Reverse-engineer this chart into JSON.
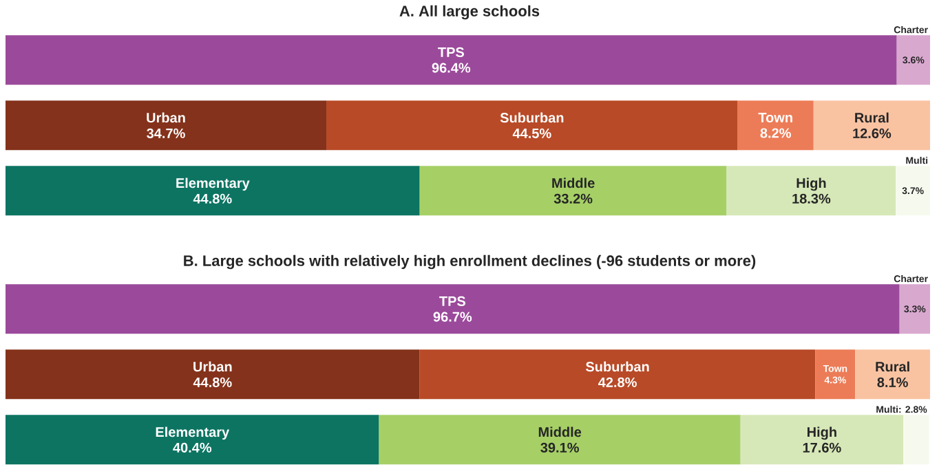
{
  "chart_data": [
    {
      "type": "bar",
      "orientation": "horizontal",
      "stacked": true,
      "title": "A. All large schools",
      "categories": [
        null,
        null,
        null
      ],
      "xlim": [
        0,
        100
      ],
      "tick_labels": false,
      "series": [
        {
          "name": "TPS",
          "color": "#9b4a9b",
          "values": [
            96.4,
            null,
            null
          ],
          "value_labels": [
            "96.4%",
            null,
            null
          ]
        },
        {
          "name": "Charter",
          "color": "#d9a8cf",
          "values": [
            3.6,
            null,
            null
          ],
          "value_labels": [
            "3.6%",
            null,
            null
          ]
        },
        {
          "name": "Urban",
          "color": "#84321b",
          "values": [
            null,
            34.7,
            null
          ],
          "value_labels": [
            null,
            "34.7%",
            null
          ]
        },
        {
          "name": "Suburban",
          "color": "#b84a27",
          "values": [
            null,
            44.5,
            null
          ],
          "value_labels": [
            null,
            "44.5%",
            null
          ]
        },
        {
          "name": "Town",
          "color": "#ec7c57",
          "values": [
            null,
            8.2,
            null
          ],
          "value_labels": [
            null,
            "8.2%",
            null
          ]
        },
        {
          "name": "Rural",
          "color": "#f9c3a2",
          "values": [
            null,
            12.6,
            null
          ],
          "value_labels": [
            null,
            "12.6%",
            null
          ]
        },
        {
          "name": "Elementary",
          "color": "#0d7462",
          "values": [
            null,
            null,
            44.8
          ],
          "value_labels": [
            null,
            null,
            "44.8%"
          ]
        },
        {
          "name": "Middle",
          "color": "#a6d066",
          "values": [
            null,
            null,
            33.2
          ],
          "value_labels": [
            null,
            null,
            "33.2%"
          ]
        },
        {
          "name": "High",
          "color": "#d7e8b8",
          "values": [
            null,
            null,
            18.3
          ],
          "value_labels": [
            null,
            null,
            "18.3%"
          ]
        },
        {
          "name": "Multi",
          "color": "#f6faee",
          "values": [
            null,
            null,
            3.7
          ],
          "value_labels": [
            null,
            null,
            "3.7%"
          ]
        }
      ]
    },
    {
      "type": "bar",
      "orientation": "horizontal",
      "stacked": true,
      "title": "B. Large schools with relatively high enrollment declines (-96 students or more)",
      "categories": [
        null,
        null,
        null
      ],
      "xlim": [
        0,
        100
      ],
      "tick_labels": false,
      "series": [
        {
          "name": "TPS",
          "color": "#9b4a9b",
          "values": [
            96.7,
            null,
            null
          ],
          "value_labels": [
            "96.7%",
            null,
            null
          ]
        },
        {
          "name": "Charter",
          "color": "#d9a8cf",
          "values": [
            3.3,
            null,
            null
          ],
          "value_labels": [
            "3.3%",
            null,
            null
          ]
        },
        {
          "name": "Urban",
          "color": "#84321b",
          "values": [
            null,
            44.8,
            null
          ],
          "value_labels": [
            null,
            "44.8%",
            null
          ]
        },
        {
          "name": "Suburban",
          "color": "#b84a27",
          "values": [
            null,
            42.8,
            null
          ],
          "value_labels": [
            null,
            "42.8%",
            null
          ]
        },
        {
          "name": "Town",
          "color": "#ec7c57",
          "values": [
            null,
            4.3,
            null
          ],
          "value_labels": [
            null,
            "4.3%",
            null
          ]
        },
        {
          "name": "Rural",
          "color": "#f9c3a2",
          "values": [
            null,
            8.1,
            null
          ],
          "value_labels": [
            null,
            "8.1%",
            null
          ]
        },
        {
          "name": "Elementary",
          "color": "#0d7462",
          "values": [
            null,
            null,
            40.4
          ],
          "value_labels": [
            null,
            null,
            "40.4%"
          ]
        },
        {
          "name": "Middle",
          "color": "#a6d066",
          "values": [
            null,
            null,
            39.1
          ],
          "value_labels": [
            null,
            null,
            "39.1%"
          ]
        },
        {
          "name": "High",
          "color": "#d7e8b8",
          "values": [
            null,
            null,
            17.6
          ],
          "value_labels": [
            null,
            null,
            "17.6%"
          ]
        },
        {
          "name": "Multi: 2.8%",
          "color": "#f6faee",
          "values": [
            null,
            null,
            2.8
          ],
          "value_labels": [
            null,
            null,
            null
          ]
        }
      ]
    }
  ]
}
